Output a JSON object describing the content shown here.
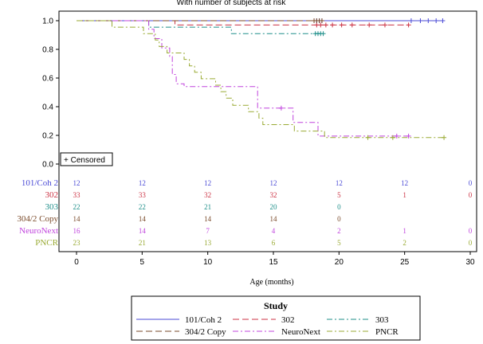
{
  "chart_data": {
    "type": "line",
    "title": "With number of subjects at risk",
    "xlabel": "Age (months)",
    "ylabel": "",
    "xlim": [
      0,
      30
    ],
    "ylim": [
      0,
      1.0
    ],
    "x_ticks": [
      "0",
      "5",
      "10",
      "15",
      "20",
      "25",
      "30"
    ],
    "y_ticks": [
      "0.0",
      "0.2",
      "0.4",
      "0.6",
      "0.8",
      "1.0"
    ],
    "censored_label": "+ Censored",
    "legend_title": "Study",
    "risk_times": [
      0,
      5,
      10,
      15,
      20,
      25,
      30
    ],
    "series": [
      {
        "name": "101/Coh 2",
        "color": "#4b4bd6",
        "dash": "solid",
        "steps": [
          [
            0,
            1.0
          ],
          [
            28,
            1.0
          ]
        ],
        "censored": [
          [
            18.3,
            1.0
          ],
          [
            18.5,
            1.0
          ],
          [
            18.7,
            1.0
          ],
          [
            25.5,
            1.0
          ],
          [
            26.2,
            1.0
          ],
          [
            26.8,
            1.0
          ],
          [
            27.4,
            1.0
          ],
          [
            27.9,
            1.0
          ]
        ],
        "at_risk": [
          "12",
          "12",
          "12",
          "12",
          "12",
          "12",
          "0"
        ]
      },
      {
        "name": "302",
        "color": "#cc3344",
        "dash": "long",
        "steps": [
          [
            0,
            1.0
          ],
          [
            7.5,
            1.0
          ],
          [
            7.5,
            0.97
          ],
          [
            25.3,
            0.97
          ]
        ],
        "censored": [
          [
            18.3,
            0.97
          ],
          [
            18.6,
            0.97
          ],
          [
            19.0,
            0.97
          ],
          [
            19.5,
            0.97
          ],
          [
            20.2,
            0.97
          ],
          [
            21.0,
            0.97
          ],
          [
            22.3,
            0.97
          ],
          [
            23.5,
            0.97
          ],
          [
            25.3,
            0.97
          ]
        ],
        "at_risk": [
          "33",
          "33",
          "32",
          "32",
          "5",
          "1",
          "0"
        ]
      },
      {
        "name": "303",
        "color": "#1f8f8a",
        "dash": "dashdot",
        "steps": [
          [
            0,
            1.0
          ],
          [
            5.5,
            1.0
          ],
          [
            5.5,
            0.955
          ],
          [
            11.8,
            0.955
          ],
          [
            11.8,
            0.91
          ],
          [
            18.7,
            0.91
          ]
        ],
        "censored": [
          [
            18.2,
            0.91
          ],
          [
            18.4,
            0.91
          ],
          [
            18.6,
            0.91
          ],
          [
            18.8,
            0.91
          ]
        ],
        "at_risk": [
          "22",
          "22",
          "21",
          "20",
          "0",
          "",
          ""
        ]
      },
      {
        "name": "304/2 Copy",
        "color": "#7a4a2a",
        "dash": "long",
        "steps": [
          [
            0,
            1.0
          ],
          [
            18.6,
            1.0
          ]
        ],
        "censored": [
          [
            18.1,
            1.0
          ],
          [
            18.3,
            1.0
          ],
          [
            18.5,
            1.0
          ],
          [
            18.7,
            1.0
          ]
        ],
        "at_risk": [
          "14",
          "14",
          "14",
          "14",
          "0",
          "",
          ""
        ]
      },
      {
        "name": "NeuroNext",
        "color": "#c044dd",
        "dash": "dashdot",
        "steps": [
          [
            0,
            1.0
          ],
          [
            5.5,
            1.0
          ],
          [
            5.5,
            0.94
          ],
          [
            5.9,
            0.94
          ],
          [
            5.9,
            0.875
          ],
          [
            6.5,
            0.875
          ],
          [
            6.5,
            0.81
          ],
          [
            7.1,
            0.81
          ],
          [
            7.1,
            0.75
          ],
          [
            7.3,
            0.75
          ],
          [
            7.3,
            0.625
          ],
          [
            7.6,
            0.625
          ],
          [
            7.6,
            0.56
          ],
          [
            8.2,
            0.56
          ],
          [
            8.2,
            0.54
          ],
          [
            13.8,
            0.54
          ],
          [
            13.8,
            0.39
          ],
          [
            16.5,
            0.39
          ],
          [
            16.5,
            0.29
          ],
          [
            18.4,
            0.29
          ],
          [
            18.4,
            0.195
          ],
          [
            25.3,
            0.195
          ]
        ],
        "censored": [
          [
            15.6,
            0.39
          ],
          [
            24.4,
            0.195
          ],
          [
            25.3,
            0.195
          ]
        ],
        "at_risk": [
          "16",
          "14",
          "7",
          "4",
          "2",
          "1",
          "0"
        ]
      },
      {
        "name": "PNCR",
        "color": "#99aa33",
        "dash": "dashdot",
        "steps": [
          [
            0,
            1.0
          ],
          [
            2.7,
            1.0
          ],
          [
            2.7,
            0.955
          ],
          [
            5.1,
            0.955
          ],
          [
            5.1,
            0.91
          ],
          [
            6.0,
            0.91
          ],
          [
            6.0,
            0.865
          ],
          [
            6.3,
            0.865
          ],
          [
            6.3,
            0.82
          ],
          [
            6.9,
            0.82
          ],
          [
            6.9,
            0.775
          ],
          [
            8.2,
            0.775
          ],
          [
            8.2,
            0.73
          ],
          [
            8.6,
            0.73
          ],
          [
            8.6,
            0.685
          ],
          [
            9.0,
            0.685
          ],
          [
            9.0,
            0.64
          ],
          [
            9.5,
            0.64
          ],
          [
            9.5,
            0.595
          ],
          [
            10.6,
            0.595
          ],
          [
            10.6,
            0.55
          ],
          [
            11.0,
            0.55
          ],
          [
            11.0,
            0.505
          ],
          [
            11.4,
            0.505
          ],
          [
            11.4,
            0.46
          ],
          [
            11.9,
            0.46
          ],
          [
            11.9,
            0.41
          ],
          [
            13.1,
            0.41
          ],
          [
            13.1,
            0.365
          ],
          [
            13.9,
            0.365
          ],
          [
            13.9,
            0.32
          ],
          [
            14.2,
            0.32
          ],
          [
            14.2,
            0.275
          ],
          [
            16.6,
            0.275
          ],
          [
            16.6,
            0.23
          ],
          [
            18.9,
            0.23
          ],
          [
            18.9,
            0.185
          ],
          [
            28.0,
            0.185
          ]
        ],
        "censored": [
          [
            22.2,
            0.185
          ],
          [
            24.1,
            0.185
          ],
          [
            28.0,
            0.185
          ]
        ],
        "at_risk": [
          "23",
          "21",
          "13",
          "6",
          "5",
          "2",
          "0"
        ]
      }
    ]
  }
}
